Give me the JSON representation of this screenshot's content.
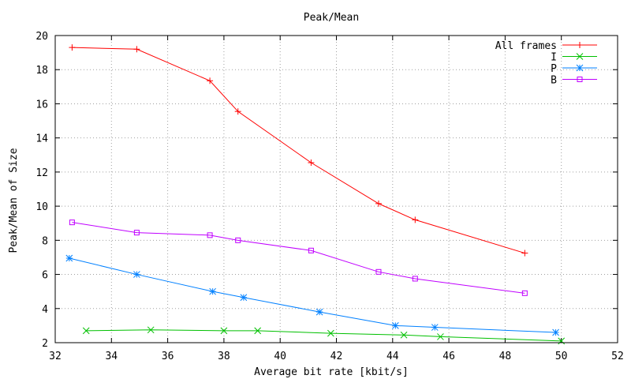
{
  "chart_data": {
    "type": "line",
    "title": "Peak/Mean",
    "xlabel": "Average bit rate [kbit/s]",
    "ylabel": "Peak/Mean of Size",
    "xlim": [
      32,
      52
    ],
    "ylim": [
      2,
      20
    ],
    "xticks": [
      32,
      34,
      36,
      38,
      40,
      42,
      44,
      46,
      48,
      50,
      52
    ],
    "yticks": [
      2,
      4,
      6,
      8,
      10,
      12,
      14,
      16,
      18,
      20
    ],
    "grid": true,
    "legend_position": "top-right",
    "series": [
      {
        "name": "All frames",
        "color": "#ff0000",
        "marker": "plus",
        "x": [
          32.6,
          34.9,
          37.5,
          38.5,
          41.1,
          43.5,
          44.8,
          48.7
        ],
        "y": [
          19.3,
          19.2,
          17.35,
          15.55,
          12.55,
          10.15,
          9.2,
          7.25
        ]
      },
      {
        "name": "I",
        "color": "#00c000",
        "marker": "cross",
        "x": [
          33.1,
          35.4,
          38.0,
          39.2,
          41.8,
          44.4,
          45.7,
          50.0
        ],
        "y": [
          2.7,
          2.75,
          2.7,
          2.7,
          2.55,
          2.45,
          2.35,
          2.1
        ]
      },
      {
        "name": "P",
        "color": "#0080ff",
        "marker": "star",
        "x": [
          32.5,
          34.9,
          37.6,
          38.7,
          41.4,
          44.1,
          45.5,
          49.8
        ],
        "y": [
          6.95,
          6.0,
          5.0,
          4.65,
          3.8,
          3.0,
          2.9,
          2.6
        ]
      },
      {
        "name": "B",
        "color": "#c000ff",
        "marker": "square",
        "x": [
          32.6,
          34.9,
          37.5,
          38.5,
          41.1,
          43.5,
          44.8,
          48.7
        ],
        "y": [
          9.05,
          8.45,
          8.3,
          8.0,
          7.4,
          6.15,
          5.75,
          4.9
        ]
      }
    ]
  }
}
